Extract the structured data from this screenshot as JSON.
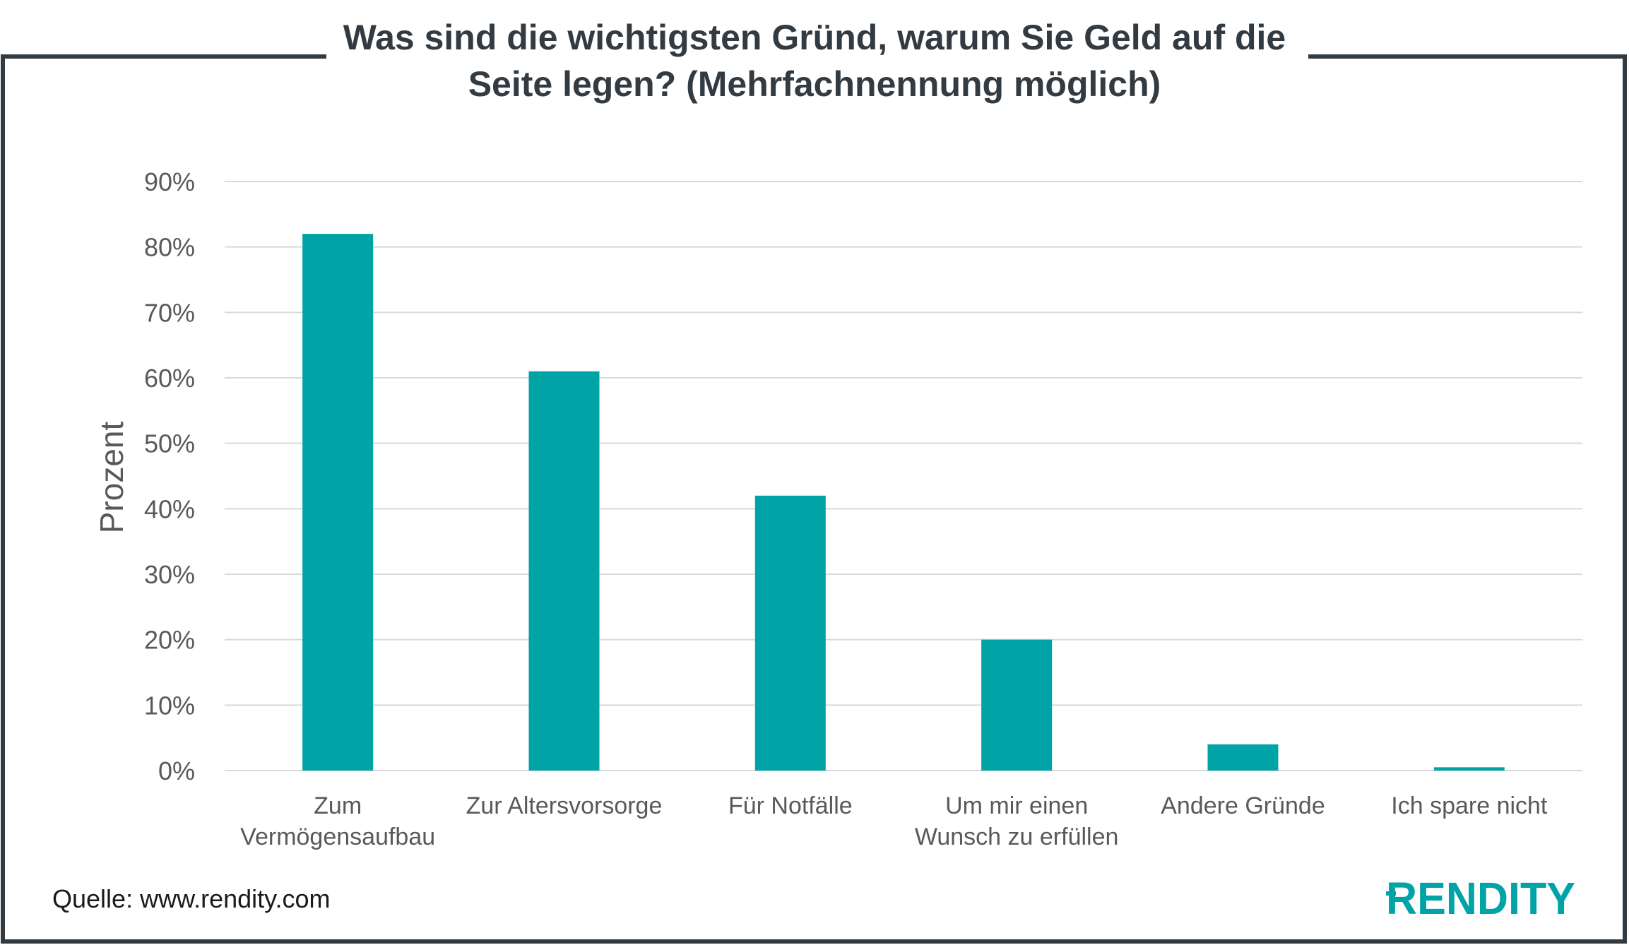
{
  "title_lines": [
    "Was sind die wichtigsten Gründ, warum Sie Geld auf die",
    "Seite legen? (Mehrfachnennung möglich)"
  ],
  "source": "Quelle: www.rendity.com",
  "logo_text": "RENDITY",
  "colors": {
    "bar": "#00a3a6",
    "frame": "#333b42",
    "grid": "#d9d9d9",
    "logo": "#00a3a6"
  },
  "chart_data": {
    "type": "bar",
    "title": "Was sind die wichtigsten Gründ, warum Sie Geld auf die Seite legen? (Mehrfachnennung möglich)",
    "ylabel": "Prozent",
    "xlabel": "",
    "ylim": [
      0,
      90
    ],
    "yticks": [
      0,
      10,
      20,
      30,
      40,
      50,
      60,
      70,
      80,
      90
    ],
    "ytick_labels": [
      "0%",
      "10%",
      "20%",
      "30%",
      "40%",
      "50%",
      "60%",
      "70%",
      "80%",
      "90%"
    ],
    "grid": true,
    "legend": "none",
    "categories": [
      [
        "Zum",
        "Vermögensaufbau"
      ],
      [
        "Zur Altersvorsorge"
      ],
      [
        "Für Notfälle"
      ],
      [
        "Um mir einen",
        "Wunsch zu erfüllen"
      ],
      [
        "Andere Gründe"
      ],
      [
        "Ich spare nicht"
      ]
    ],
    "values": [
      82,
      61,
      42,
      20,
      4,
      0.5
    ]
  }
}
